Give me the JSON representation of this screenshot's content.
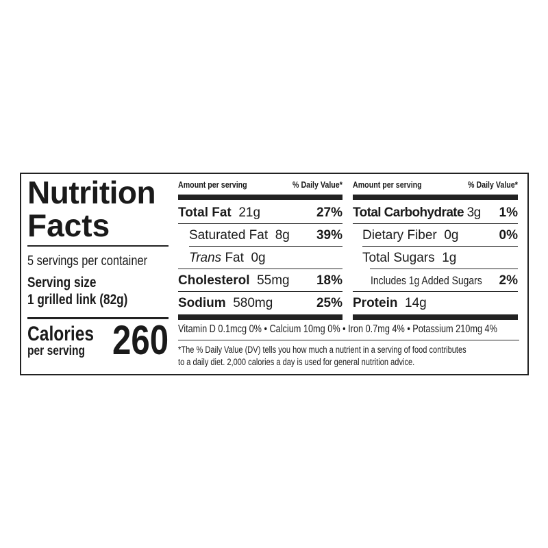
{
  "title_line1": "Nutrition",
  "title_line2": "Facts",
  "servings_per_container": "5 servings per container",
  "serving_size_label": "Serving size",
  "serving_size_value": "1 grilled link (82g)",
  "calories_label": "Calories",
  "calories_sub": "per serving",
  "calories_value": "260",
  "left_table": {
    "header_amount": "Amount per serving",
    "header_dv": "% Daily Value*",
    "rows": [
      {
        "name": "Total Fat",
        "amount": "21g",
        "dv": "27%"
      },
      {
        "name": "Saturated Fat",
        "amount": "8g",
        "dv": "39%"
      },
      {
        "name": "Trans",
        "name_suffix": " Fat",
        "amount": "0g",
        "dv": ""
      },
      {
        "name": "Cholesterol",
        "amount": "55mg",
        "dv": "18%"
      },
      {
        "name": "Sodium",
        "amount": "580mg",
        "dv": "25%"
      }
    ]
  },
  "right_table": {
    "header_amount": "Amount per serving",
    "header_dv": "% Daily Value*",
    "rows": [
      {
        "name": "Total Carbohydrate",
        "amount": "3g",
        "dv": "1%"
      },
      {
        "name": "Dietary Fiber",
        "amount": "0g",
        "dv": "0%"
      },
      {
        "name": "Total Sugars",
        "amount": "1g",
        "dv": ""
      },
      {
        "name": "Includes 1g Added Sugars",
        "amount": "",
        "dv": "2%"
      },
      {
        "name": "Protein",
        "amount": "14g",
        "dv": ""
      }
    ]
  },
  "vitamins_line": "Vitamin D 0.1mcg 0% • Calcium 10mg 0% • Iron 0.7mg 4% • Potassium 210mg 4%",
  "footnote_line1": "*The % Daily Value (DV) tells you how much a nutrient in a serving of food contributes",
  "footnote_line2": "to a daily diet. 2,000 calories a day is used for general nutrition advice."
}
